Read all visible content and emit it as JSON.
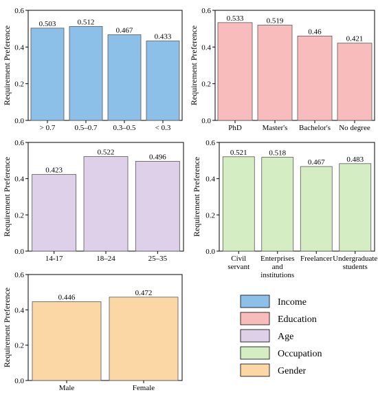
{
  "colors": {
    "income": "#8dc0e8",
    "education": "#f8bcbc",
    "age": "#ddd0e8",
    "occupation": "#d5edc2",
    "gender": "#fbd7a6",
    "bar_edge": "#555555"
  },
  "chart_data": [
    {
      "id": "income",
      "type": "bar",
      "categories": [
        "> 0.7",
        "0.5–0.7",
        "0.3–0.5",
        "< 0.3"
      ],
      "values": [
        0.503,
        0.512,
        0.467,
        0.433
      ],
      "value_labels": [
        "0.503",
        "0.512",
        "0.467",
        "0.433"
      ],
      "ylabel": "Requirement Preference",
      "ylim": [
        0,
        0.6
      ],
      "yticks": [
        "0.0",
        "0.2",
        "0.4",
        "0.6"
      ],
      "ytick_values": [
        0,
        0.2,
        0.4,
        0.6
      ],
      "color_key": "income"
    },
    {
      "id": "education",
      "type": "bar",
      "categories": [
        "PhD",
        "Master's",
        "Bachelor's",
        "No degree"
      ],
      "values": [
        0.533,
        0.519,
        0.46,
        0.421
      ],
      "value_labels": [
        "0.533",
        "0.519",
        "0.46",
        "0.421"
      ],
      "ylabel": "Requirement Preference",
      "ylim": [
        0,
        0.6
      ],
      "yticks": [
        "0.0",
        "0.2",
        "0.4",
        "0.6"
      ],
      "ytick_values": [
        0,
        0.2,
        0.4,
        0.6
      ],
      "color_key": "education"
    },
    {
      "id": "age",
      "type": "bar",
      "categories": [
        "14-17",
        "18–24",
        "25–35"
      ],
      "values": [
        0.423,
        0.522,
        0.496
      ],
      "value_labels": [
        "0.423",
        "0.522",
        "0.496"
      ],
      "ylabel": "Requirement Preference",
      "ylim": [
        0,
        0.6
      ],
      "yticks": [
        "0.0",
        "0.2",
        "0.4",
        "0.6"
      ],
      "ytick_values": [
        0,
        0.2,
        0.4,
        0.6
      ],
      "color_key": "age"
    },
    {
      "id": "occupation",
      "type": "bar",
      "categories": [
        [
          "Civil",
          "servant"
        ],
        [
          "Enterprises",
          "and",
          "institutions"
        ],
        [
          "Freelancer"
        ],
        [
          "Undergraduate",
          "students"
        ]
      ],
      "values": [
        0.521,
        0.518,
        0.467,
        0.483
      ],
      "value_labels": [
        "0.521",
        "0.518",
        "0.467",
        "0.483"
      ],
      "ylabel": "Requirement Preference",
      "ylim": [
        0,
        0.6
      ],
      "yticks": [
        "0.0",
        "0.2",
        "0.4",
        "0.6"
      ],
      "ytick_values": [
        0,
        0.2,
        0.4,
        0.6
      ],
      "color_key": "occupation"
    },
    {
      "id": "gender",
      "type": "bar",
      "categories": [
        "Male",
        "Female"
      ],
      "values": [
        0.446,
        0.472
      ],
      "value_labels": [
        "0.446",
        "0.472"
      ],
      "ylabel": "Requirement Preference",
      "ylim": [
        0,
        0.6
      ],
      "yticks": [
        "0.0",
        "0.2",
        "0.4",
        "0.6"
      ],
      "ytick_values": [
        0,
        0.2,
        0.4,
        0.6
      ],
      "color_key": "gender"
    }
  ],
  "legend": {
    "placement": "bottom-right",
    "entries": [
      {
        "label": "Income",
        "color_key": "income"
      },
      {
        "label": "Education",
        "color_key": "education"
      },
      {
        "label": "Age",
        "color_key": "age"
      },
      {
        "label": "Occupation",
        "color_key": "occupation"
      },
      {
        "label": "Gender",
        "color_key": "gender"
      }
    ]
  }
}
